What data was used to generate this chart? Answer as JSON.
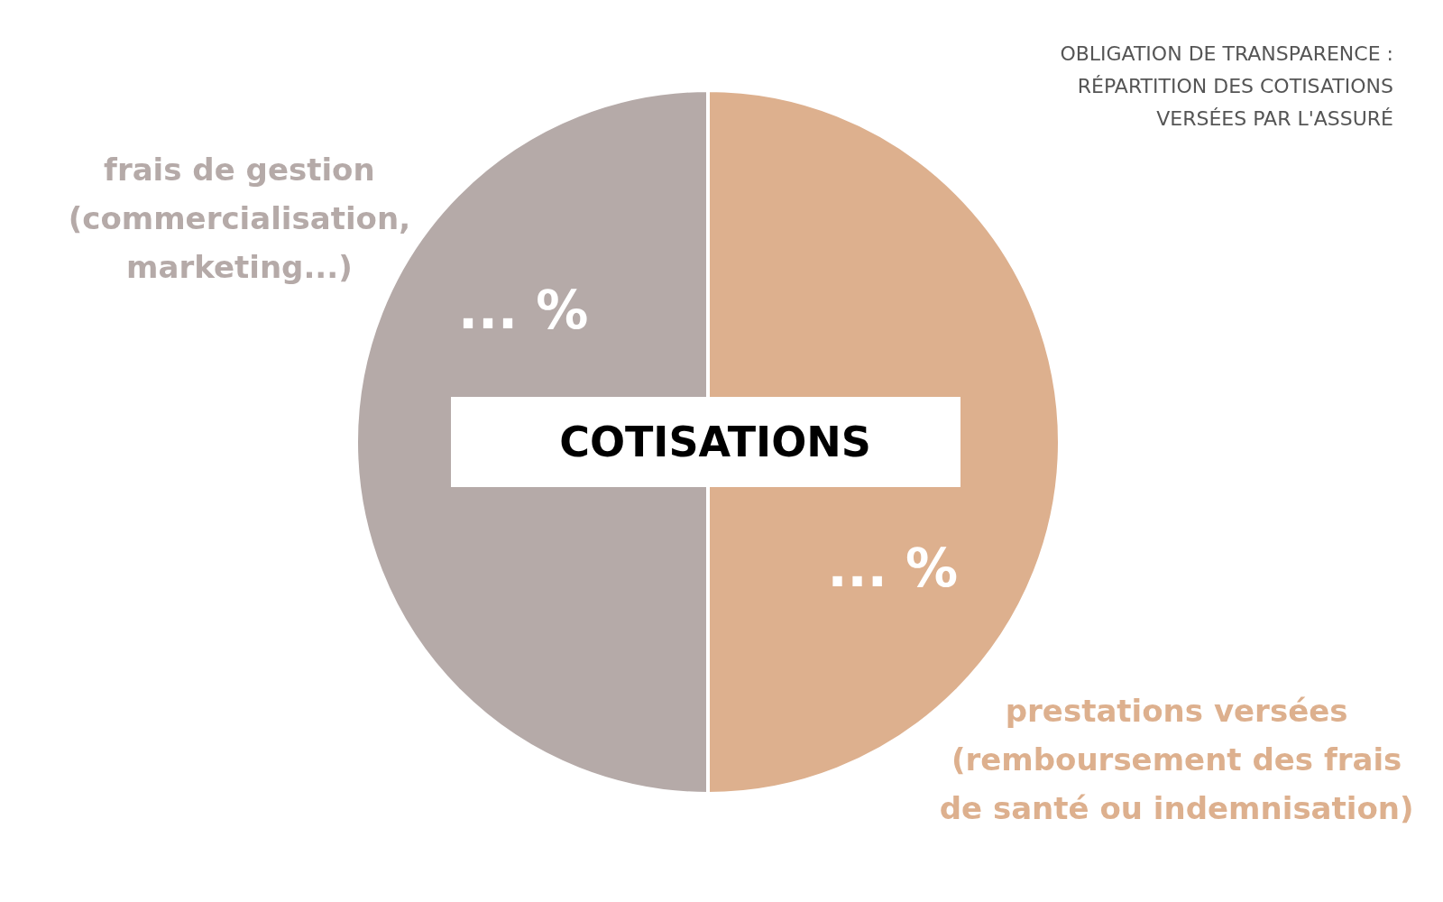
{
  "chart_data": {
    "type": "pie",
    "title": "OBLIGATION DE TRANSPARENCE :\nRÉPARTITION DES COTISATIONS\nVERSÉES PAR L'ASSURÉ",
    "categories": [
      "prestations versées\n(remboursement des frais\nde santé ou indemnisation)",
      "frais de gestion\n(commercialisation,\nmarketing...)"
    ],
    "values": [
      50,
      50
    ],
    "colors": [
      "#ddb08e",
      "#b5aaa8"
    ],
    "value_labels": [
      "... %",
      "... %"
    ],
    "annotations": [
      "COTISATIONS"
    ]
  }
}
